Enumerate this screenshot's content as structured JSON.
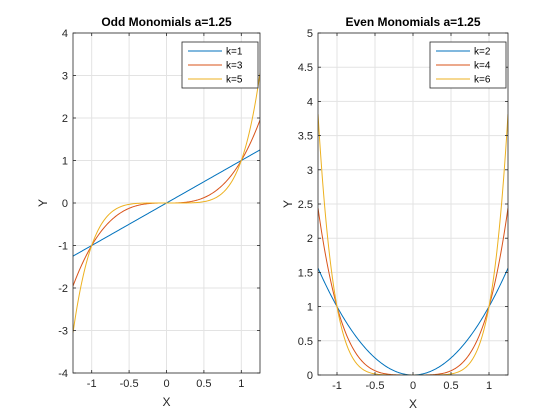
{
  "chart_data": [
    {
      "type": "line",
      "title": "Odd Monomials a=1.25",
      "xlabel": "X",
      "ylabel": "Y",
      "xlim": [
        -1.25,
        1.25
      ],
      "ylim": [
        -4,
        4
      ],
      "xticks": [
        -1,
        -0.5,
        0,
        0.5,
        1
      ],
      "yticks": [
        -4,
        -3,
        -2,
        -1,
        0,
        1,
        2,
        3,
        4
      ],
      "xtick_labels": [
        "-1",
        "-0.5",
        "0",
        "0.5",
        "1"
      ],
      "ytick_labels": [
        "-4",
        "-3",
        "-2",
        "-1",
        "0",
        "1",
        "2",
        "3",
        "4"
      ],
      "grid": true,
      "legend_position": "top-right",
      "series": [
        {
          "name": "k=1",
          "exponent": 1,
          "color": "#0072BD"
        },
        {
          "name": "k=3",
          "exponent": 3,
          "color": "#D95319"
        },
        {
          "name": "k=5",
          "exponent": 5,
          "color": "#EDB120"
        }
      ]
    },
    {
      "type": "line",
      "title": "Even Monomials a=1.25",
      "xlabel": "X",
      "ylabel": "Y",
      "xlim": [
        -1.25,
        1.25
      ],
      "ylim": [
        0,
        5
      ],
      "xticks": [
        -1,
        -0.5,
        0,
        0.5,
        1
      ],
      "yticks": [
        0,
        0.5,
        1,
        1.5,
        2,
        2.5,
        3,
        3.5,
        4,
        4.5,
        5
      ],
      "xtick_labels": [
        "-1",
        "-0.5",
        "0",
        "0.5",
        "1"
      ],
      "ytick_labels": [
        "0",
        "0.5",
        "1",
        "1.5",
        "2",
        "2.5",
        "3",
        "3.5",
        "4",
        "4.5",
        "5"
      ],
      "grid": true,
      "legend_position": "top-right",
      "series": [
        {
          "name": "k=2",
          "exponent": 2,
          "color": "#0072BD"
        },
        {
          "name": "k=4",
          "exponent": 4,
          "color": "#D95319"
        },
        {
          "name": "k=6",
          "exponent": 6,
          "color": "#EDB120"
        }
      ]
    }
  ]
}
